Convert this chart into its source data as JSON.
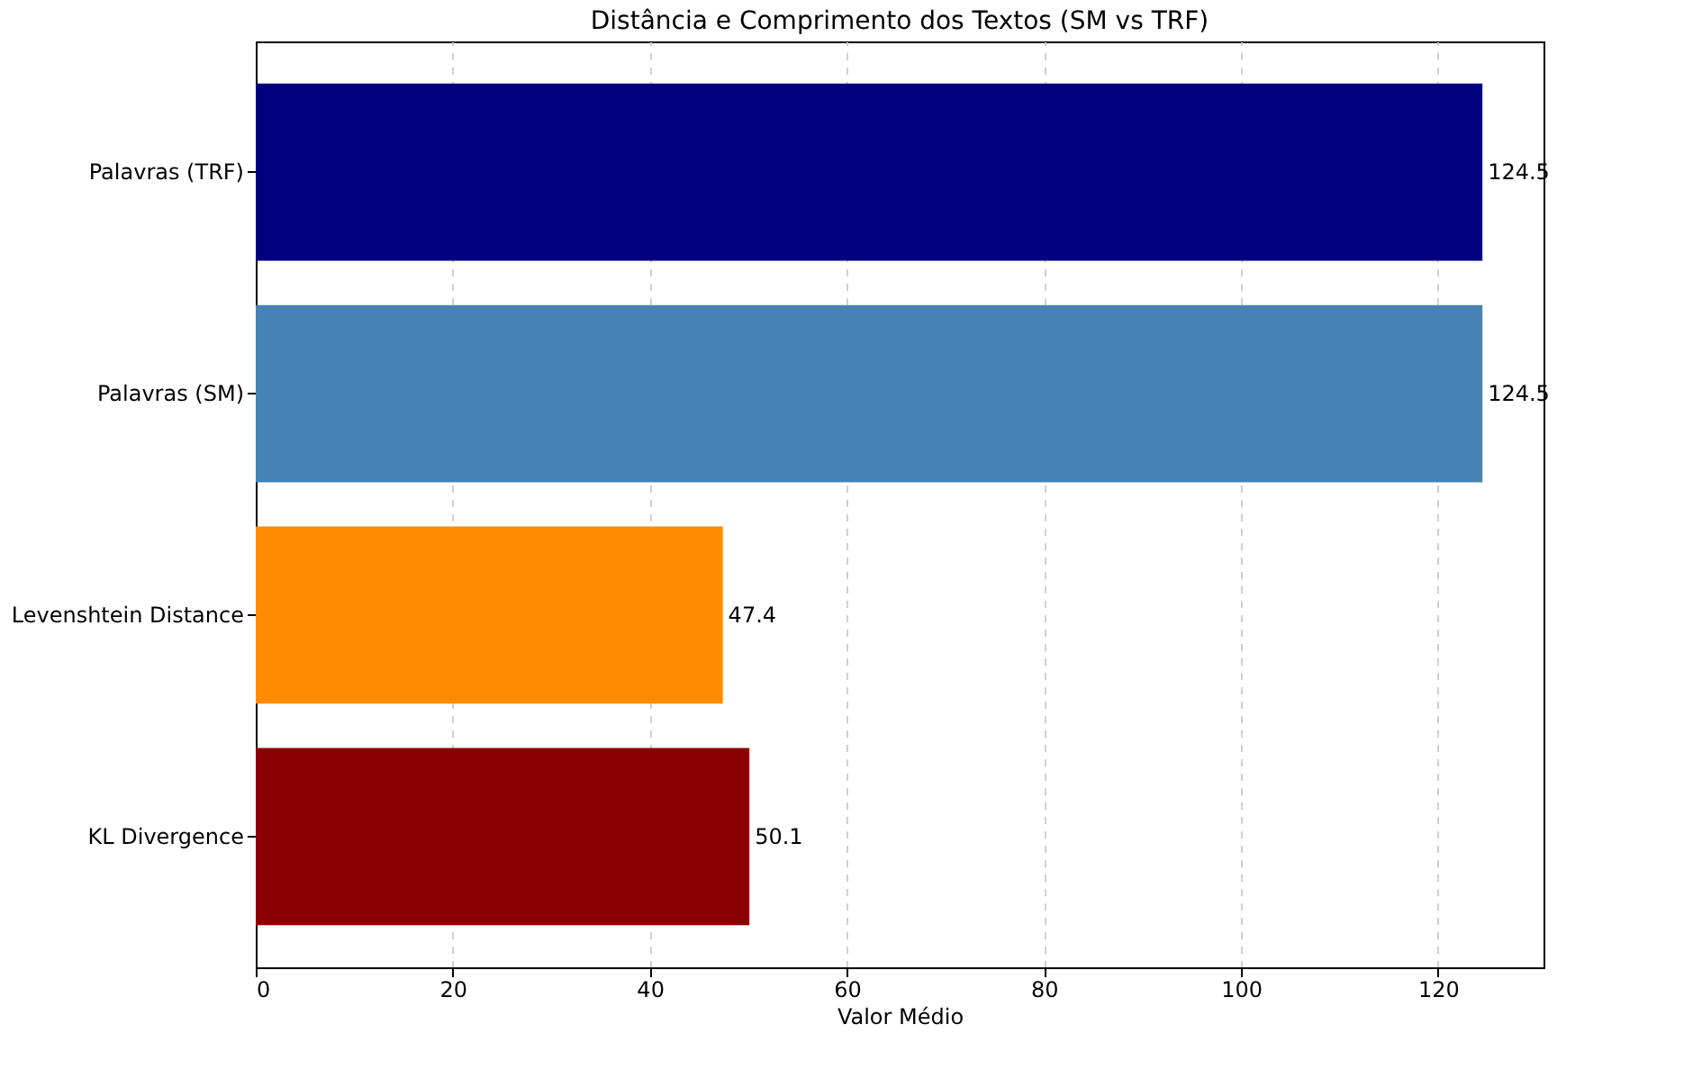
{
  "chart_data": {
    "type": "bar",
    "orientation": "horizontal",
    "title": "Distância e Comprimento dos Textos (SM vs TRF)",
    "xlabel": "Valor Médio",
    "categories": [
      "Palavras (TRF)",
      "Palavras (SM)",
      "Levenshtein Distance",
      "KL Divergence"
    ],
    "values": [
      124.5,
      124.5,
      47.4,
      50.1
    ],
    "colors": [
      "#000080",
      "#4682b4",
      "#ff8c00",
      "#8b0000"
    ],
    "xlim": [
      0,
      130.7
    ],
    "xticks": [
      0,
      20,
      40,
      60,
      80,
      100,
      120
    ],
    "grid": "x",
    "line_style": "dashed",
    "data_labels": true
  }
}
